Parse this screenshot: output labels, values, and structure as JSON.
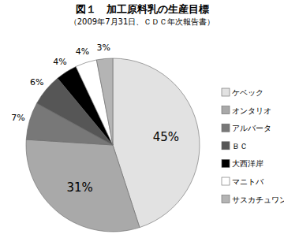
{
  "chart_data": {
    "type": "pie",
    "title": "図１　加工原料乳の生産目標",
    "subtitle": "（2009年7月31日、ＣＤＣ年次報告書）",
    "categories": [
      "ケベック",
      "オンタリオ",
      "アルバータ",
      "ＢＣ",
      "大西洋岸",
      "マニトバ",
      "サスカチュワン"
    ],
    "values": [
      45,
      31,
      7,
      6,
      4,
      4,
      3
    ],
    "value_labels": [
      "45%",
      "31%",
      "7%",
      "6%",
      "4%",
      "4%",
      "3%"
    ],
    "colors": [
      "#e2e2e2",
      "#a9a9a9",
      "#787878",
      "#565656",
      "#000000",
      "#ffffff",
      "#b4b4b4"
    ],
    "data_labels": true,
    "legend": "right"
  }
}
